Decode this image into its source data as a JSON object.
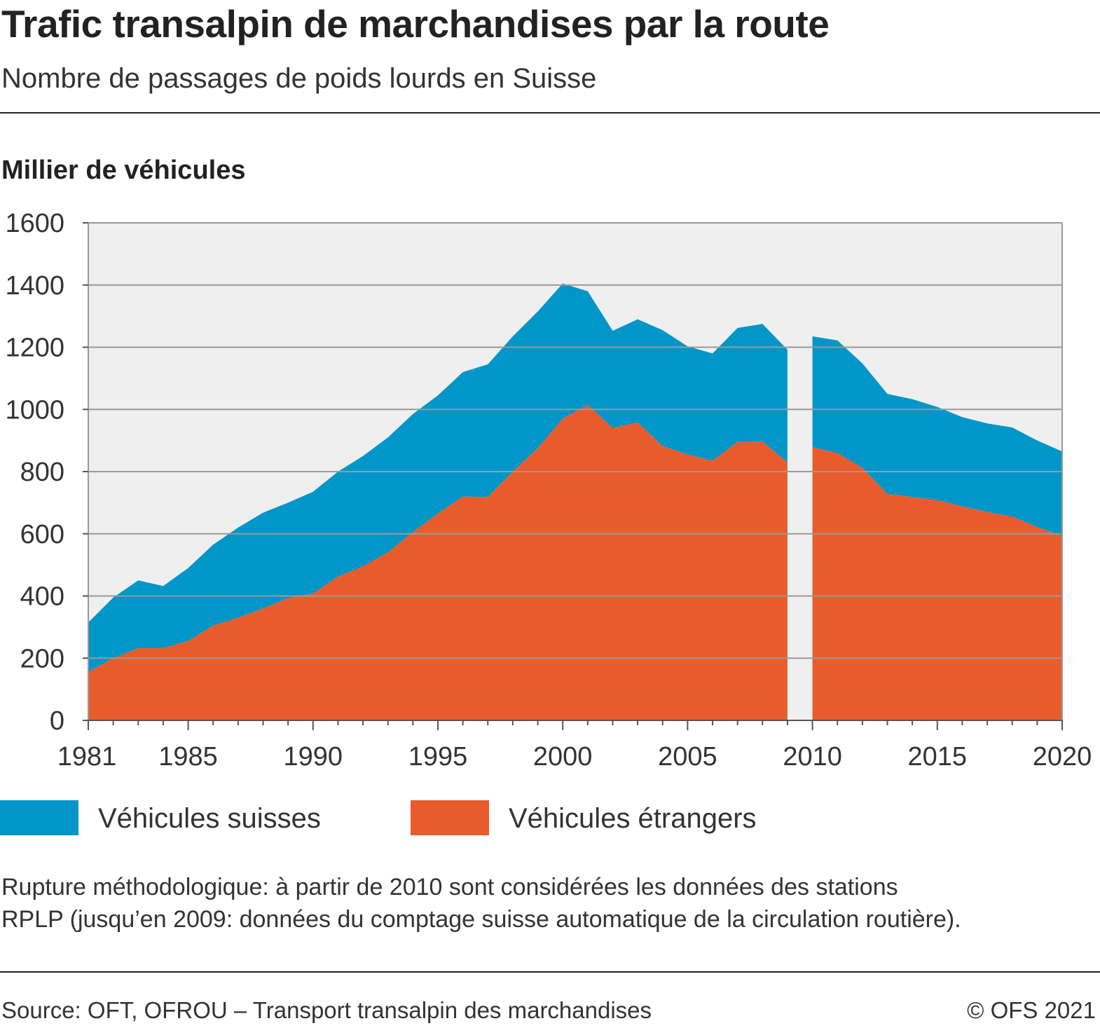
{
  "header": {
    "title": "Trafic transalpin de marchandises par la route",
    "subtitle": "Nombre de passages de poids lourds en Suisse"
  },
  "axis": {
    "ylabel": "Millier de véhicules"
  },
  "legend": {
    "swiss": "Véhicules suisses",
    "foreign": "Véhicules étrangers"
  },
  "note": {
    "line1": "Rupture méthodologique: à partir de 2010 sont considérées les données des stations",
    "line2": "RPLP (jusqu’en 2009: données du comptage suisse automatique de la circulation routière)."
  },
  "footer": {
    "source": "Source: OFT, OFROU – Transport transalpin des marchandises",
    "copyright": "© OFS 2021"
  },
  "chart_data": {
    "type": "area",
    "stacked": true,
    "xlim": [
      1981,
      2020
    ],
    "ylim": [
      0,
      1600
    ],
    "xticks": [
      1981,
      1985,
      1990,
      1995,
      2000,
      2005,
      2010,
      2015,
      2020
    ],
    "yticks": [
      0,
      200,
      400,
      600,
      800,
      1000,
      1200,
      1400,
      1600
    ],
    "grid": true,
    "legend_position": "bottom",
    "colors": {
      "swiss": "#0096c8",
      "foreign": "#e85c2c",
      "background": "#efefef",
      "grid": "#9a9a9a"
    },
    "methodological_break": [
      2009,
      2010
    ],
    "segments": [
      {
        "x": [
          1981,
          1982,
          1983,
          1984,
          1985,
          1986,
          1987,
          1988,
          1989,
          1990,
          1991,
          1992,
          1993,
          1994,
          1995,
          1996,
          1997,
          1998,
          1999,
          2000,
          2001,
          2002,
          2003,
          2004,
          2005,
          2006,
          2007,
          2008,
          2009
        ],
        "foreign": [
          155,
          200,
          232,
          232,
          255,
          305,
          330,
          360,
          393,
          408,
          462,
          495,
          540,
          605,
          665,
          720,
          718,
          800,
          875,
          970,
          1015,
          940,
          958,
          882,
          855,
          835,
          895,
          897,
          830
        ],
        "total": [
          315,
          395,
          450,
          432,
          490,
          565,
          620,
          668,
          700,
          735,
          800,
          850,
          910,
          985,
          1045,
          1120,
          1145,
          1235,
          1315,
          1405,
          1380,
          1253,
          1290,
          1255,
          1203,
          1180,
          1262,
          1275,
          1192
        ]
      },
      {
        "x": [
          2010,
          2011,
          2012,
          2013,
          2014,
          2015,
          2016,
          2017,
          2018,
          2019,
          2020
        ],
        "foreign": [
          878,
          860,
          812,
          728,
          718,
          708,
          688,
          670,
          655,
          622,
          592
        ],
        "total": [
          1235,
          1222,
          1148,
          1050,
          1033,
          1008,
          975,
          955,
          942,
          900,
          865
        ]
      }
    ],
    "series": [
      {
        "name": "Véhicules suisses",
        "color": "#0096c8",
        "role": "top band (total minus foreign)"
      },
      {
        "name": "Véhicules étrangers",
        "color": "#e85c2c",
        "role": "bottom band"
      }
    ]
  }
}
